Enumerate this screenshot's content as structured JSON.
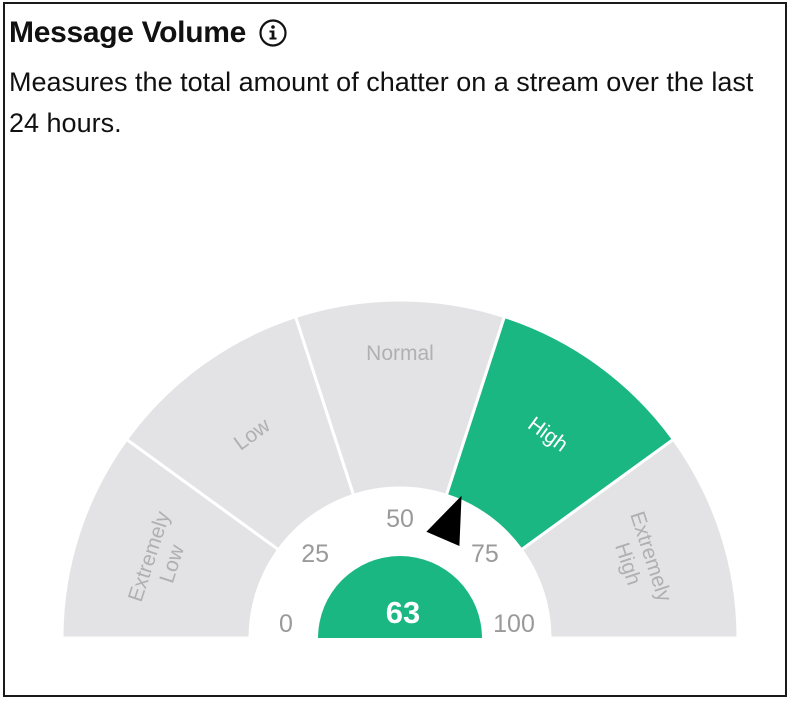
{
  "widget": {
    "title": "Message Volume",
    "info_icon": "info-circle-icon",
    "description": "Measures the total amount of chatter on a stream over the last 24 hours."
  },
  "gauge": {
    "value": 63,
    "value_label": "63",
    "min": 0,
    "max": 100,
    "ticks": [
      {
        "value": 0,
        "label": "0"
      },
      {
        "value": 25,
        "label": "25"
      },
      {
        "value": 50,
        "label": "50"
      },
      {
        "value": 75,
        "label": "75"
      },
      {
        "value": 100,
        "label": "100"
      }
    ],
    "segments": [
      {
        "lines": [
          "Extremely",
          "Low"
        ],
        "from": 0,
        "to": 20,
        "active": false
      },
      {
        "lines": [
          "Low"
        ],
        "from": 20,
        "to": 40,
        "active": false
      },
      {
        "lines": [
          "Normal"
        ],
        "from": 40,
        "to": 60,
        "active": false
      },
      {
        "lines": [
          "High"
        ],
        "from": 60,
        "to": 80,
        "active": true
      },
      {
        "lines": [
          "Extremely",
          "High"
        ],
        "from": 80,
        "to": 100,
        "active": false
      }
    ],
    "colors": {
      "active": "#1bb783",
      "inactive": "#e3e3e6",
      "inactive_text": "#b0b0b3",
      "active_text": "#ffffff",
      "pointer": "#000000"
    }
  }
}
